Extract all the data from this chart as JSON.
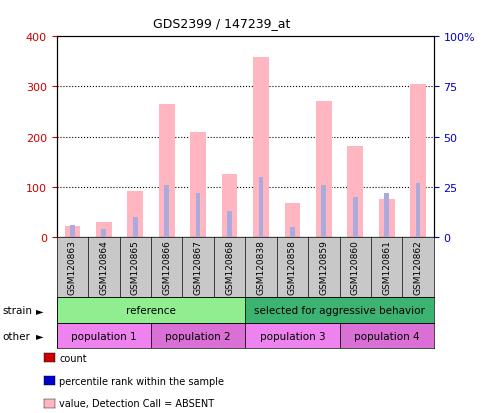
{
  "title": "GDS2399 / 147239_at",
  "samples": [
    "GSM120863",
    "GSM120864",
    "GSM120865",
    "GSM120866",
    "GSM120867",
    "GSM120868",
    "GSM120838",
    "GSM120858",
    "GSM120859",
    "GSM120860",
    "GSM120861",
    "GSM120862"
  ],
  "absent_value": [
    22,
    30,
    92,
    265,
    210,
    125,
    358,
    68,
    272,
    182,
    75,
    305
  ],
  "absent_rank": [
    6,
    4,
    10,
    26,
    22,
    13,
    30,
    5,
    26,
    20,
    22,
    27
  ],
  "count_values": [
    0,
    0,
    0,
    0,
    0,
    0,
    0,
    0,
    0,
    0,
    0,
    0
  ],
  "percentile_values": [
    0,
    0,
    0,
    0,
    0,
    0,
    0,
    0,
    0,
    0,
    0,
    0
  ],
  "strain_groups": [
    {
      "label": "reference",
      "start": 0,
      "end": 6,
      "color": "#90EE90"
    },
    {
      "label": "selected for aggressive behavior",
      "start": 6,
      "end": 12,
      "color": "#3CB371"
    }
  ],
  "other_groups": [
    {
      "label": "population 1",
      "start": 0,
      "end": 3,
      "color": "#EE82EE"
    },
    {
      "label": "population 2",
      "start": 3,
      "end": 6,
      "color": "#DA70D6"
    },
    {
      "label": "population 3",
      "start": 6,
      "end": 9,
      "color": "#EE82EE"
    },
    {
      "label": "population 4",
      "start": 9,
      "end": 12,
      "color": "#DA70D6"
    }
  ],
  "ylim_left": [
    0,
    400
  ],
  "ylim_right": [
    0,
    100
  ],
  "yticks_left": [
    0,
    100,
    200,
    300,
    400
  ],
  "yticks_right": [
    0,
    25,
    50,
    75,
    100
  ],
  "ytick_labels_right": [
    "0",
    "25",
    "50",
    "75",
    "100%"
  ],
  "pink_bar_width": 0.5,
  "blue_bar_width": 0.15,
  "color_absent_value": "#FFB6C1",
  "color_absent_rank": "#AAAADD",
  "color_count": "#CC0000",
  "color_percentile": "#0000CC",
  "left_tick_color": "#CC0000",
  "right_tick_color": "#0000CC",
  "xtick_bg": "#C8C8C8",
  "plot_bg": "#FFFFFF"
}
